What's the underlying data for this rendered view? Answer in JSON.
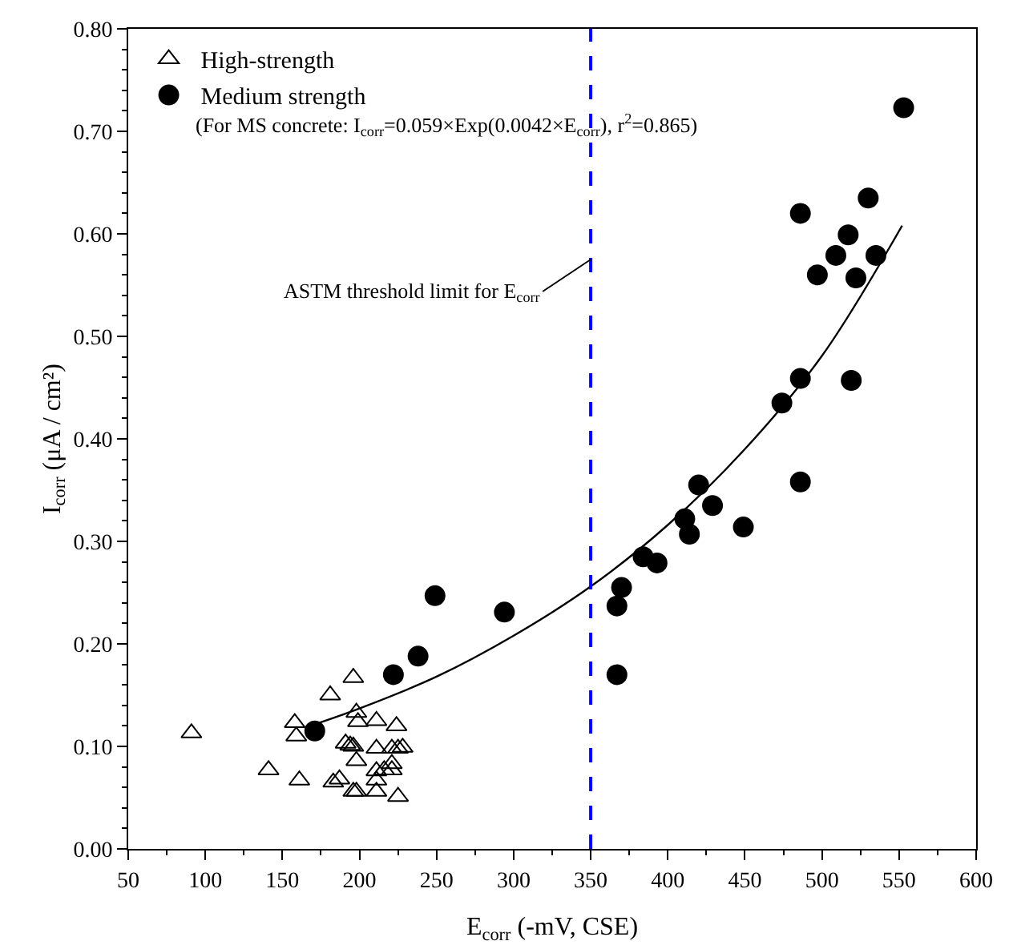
{
  "chart_data": {
    "type": "scatter",
    "xlabel": "E$_{corr}$ (-mV, CSE)",
    "ylabel": "I$_{corr}$ (μA / cm²)",
    "xlim": [
      50,
      600
    ],
    "xticks": [
      50,
      100,
      150,
      200,
      250,
      300,
      350,
      400,
      450,
      500,
      550,
      600
    ],
    "ylim": [
      0,
      0.8
    ],
    "yticks": [
      {
        "value": 0,
        "label": "0.00"
      },
      {
        "value": 0.1,
        "label": "0.10"
      },
      {
        "value": 0.2,
        "label": "0.20"
      },
      {
        "value": 0.3,
        "label": "0.30"
      },
      {
        "value": 0.4,
        "label": "0.40"
      },
      {
        "value": 0.5,
        "label": "0.50"
      },
      {
        "value": 0.6,
        "label": "0.60"
      },
      {
        "value": 0.7,
        "label": "0.70"
      },
      {
        "value": 0.8,
        "label": "0.80"
      }
    ],
    "grid": false,
    "legend": "top left",
    "series": [
      {
        "name": "High-strength",
        "color": "#000000",
        "marker": "triangle",
        "x": [
          91,
          141,
          158,
          159,
          161,
          181,
          183,
          187,
          191,
          194,
          196,
          198,
          199,
          196,
          198,
          196,
          198,
          211,
          211,
          211,
          211,
          211,
          221,
          224,
          225,
          228,
          221,
          221,
          225,
          216
        ],
        "values": [
          0.113,
          0.077,
          0.123,
          0.11,
          0.067,
          0.15,
          0.065,
          0.068,
          0.103,
          0.101,
          0.167,
          0.133,
          0.124,
          0.1,
          0.086,
          0.056,
          0.056,
          0.125,
          0.098,
          0.076,
          0.067,
          0.056,
          0.098,
          0.12,
          0.098,
          0.099,
          0.077,
          0.083,
          0.051,
          0.077
        ]
      },
      {
        "name": "Medium strength",
        "color": "#000000",
        "marker": "circle",
        "x": [
          171,
          222,
          238,
          249,
          294,
          367,
          367,
          370,
          384,
          393,
          411,
          414,
          420,
          429,
          449,
          474,
          486,
          486,
          486,
          497,
          509,
          517,
          522,
          519,
          530,
          535,
          553
        ],
        "values": [
          0.115,
          0.17,
          0.188,
          0.247,
          0.231,
          0.17,
          0.237,
          0.255,
          0.285,
          0.279,
          0.322,
          0.307,
          0.355,
          0.335,
          0.314,
          0.435,
          0.459,
          0.358,
          0.62,
          0.56,
          0.579,
          0.599,
          0.557,
          0.457,
          0.635,
          0.579,
          0.723
        ]
      },
      {
        "type": "line",
        "color": "#000000",
        "marker": "none",
        "x": [
          170,
          200,
          250,
          300,
          350,
          400,
          450,
          500,
          552
        ],
        "values": [
          0.121,
          0.137,
          0.168,
          0.208,
          0.256,
          0.316,
          0.39,
          0.481,
          0.608
        ]
      }
    ],
    "ref_lines": [
      {
        "axis": "x",
        "value": 350,
        "color": "#0000ff",
        "line_style": "dashed"
      }
    ],
    "annotations": [
      "(For MS concrete: I$_{corr}$=0.059×Exp(0.0042×E$_{corr}$), r$^{2}$=0.865)",
      {
        "text": "ASTM threshold limit for E$_{corr}$",
        "x": 350,
        "y": 0.575
      }
    ]
  }
}
